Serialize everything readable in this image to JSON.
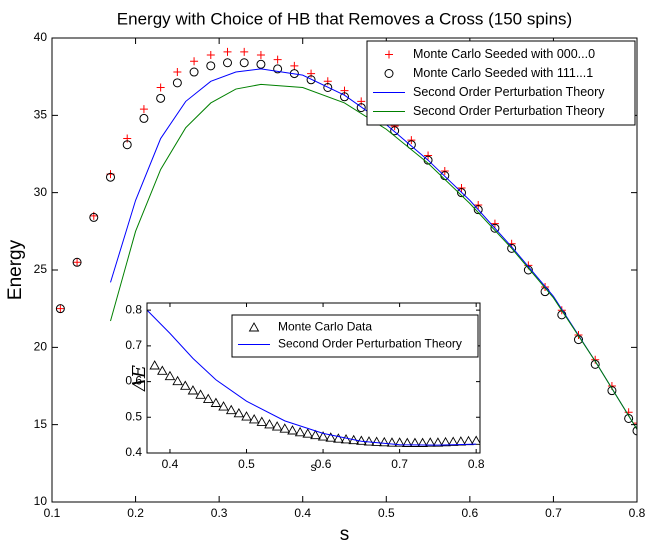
{
  "chart_data": [
    {
      "type": "line",
      "title": "Energy with Choice of HB that Removes a Cross (150 spins)",
      "x_label": "s",
      "y_label": "Energy",
      "xlim": [
        0.1,
        0.8
      ],
      "xticks": [
        0.1,
        0.2,
        0.3,
        0.4,
        0.5,
        0.6,
        0.7,
        0.8
      ],
      "ylim": [
        10,
        40
      ],
      "yticks": [
        10,
        15,
        20,
        25,
        30,
        35,
        40
      ],
      "legend": "upper right",
      "series": [
        {
          "name": "Monte Carlo Seeded with 000...0",
          "color": "#ff0000",
          "marker": "+",
          "x": [
            0.11,
            0.13,
            0.15,
            0.17,
            0.19,
            0.21,
            0.23,
            0.25,
            0.27,
            0.29,
            0.31,
            0.33,
            0.35,
            0.37,
            0.39,
            0.41,
            0.43,
            0.45,
            0.47,
            0.49,
            0.51,
            0.53,
            0.55,
            0.57,
            0.59,
            0.61,
            0.63,
            0.65,
            0.67,
            0.69,
            0.71,
            0.73,
            0.75,
            0.77,
            0.79,
            0.8
          ],
          "values": [
            22.5,
            25.5,
            28.5,
            31.2,
            33.5,
            35.4,
            36.8,
            37.8,
            38.5,
            38.9,
            39.1,
            39.1,
            38.9,
            38.6,
            38.2,
            37.7,
            37.2,
            36.6,
            35.9,
            35.1,
            34.3,
            33.4,
            32.4,
            31.4,
            30.3,
            29.2,
            28.0,
            26.7,
            25.3,
            23.9,
            22.4,
            20.8,
            19.2,
            17.5,
            15.8,
            15.1
          ]
        },
        {
          "name": "Monte Carlo Seeded with 111...1",
          "color": "#000000",
          "marker": "o",
          "x": [
            0.11,
            0.13,
            0.15,
            0.17,
            0.19,
            0.21,
            0.23,
            0.25,
            0.27,
            0.29,
            0.31,
            0.33,
            0.35,
            0.37,
            0.39,
            0.41,
            0.43,
            0.45,
            0.47,
            0.49,
            0.51,
            0.53,
            0.55,
            0.57,
            0.59,
            0.61,
            0.63,
            0.65,
            0.67,
            0.69,
            0.71,
            0.73,
            0.75,
            0.77,
            0.79,
            0.8
          ],
          "values": [
            22.5,
            25.5,
            28.4,
            31.0,
            33.1,
            34.8,
            36.1,
            37.1,
            37.8,
            38.2,
            38.4,
            38.4,
            38.3,
            38.0,
            37.7,
            37.3,
            36.8,
            36.2,
            35.5,
            34.8,
            34.0,
            33.1,
            32.1,
            31.1,
            30.0,
            28.9,
            27.7,
            26.4,
            25.0,
            23.6,
            22.1,
            20.5,
            18.9,
            17.2,
            15.4,
            14.6
          ]
        },
        {
          "name": "Second Order Perturbation Theory",
          "color": "#0000ff",
          "x": [
            0.17,
            0.2,
            0.23,
            0.26,
            0.29,
            0.32,
            0.35,
            0.4,
            0.45,
            0.5,
            0.55,
            0.6,
            0.65,
            0.7,
            0.75,
            0.8
          ],
          "values": [
            24.2,
            29.5,
            33.5,
            35.9,
            37.2,
            37.8,
            38.0,
            37.6,
            36.3,
            34.4,
            32.1,
            29.5,
            26.5,
            23.3,
            19.1,
            14.7
          ]
        },
        {
          "name": "Second Order Perturbation Theory",
          "color": "#008000",
          "x": [
            0.17,
            0.2,
            0.23,
            0.26,
            0.29,
            0.32,
            0.35,
            0.4,
            0.45,
            0.5,
            0.55,
            0.6,
            0.65,
            0.7,
            0.75,
            0.8
          ],
          "values": [
            21.7,
            27.5,
            31.5,
            34.2,
            35.8,
            36.7,
            37.0,
            36.8,
            35.8,
            34.1,
            31.9,
            29.3,
            26.4,
            23.2,
            19.1,
            14.7
          ]
        }
      ]
    },
    {
      "type": "line",
      "x_label": "s",
      "y_label": "ΔE",
      "xlim": [
        0.37,
        0.805
      ],
      "xticks": [
        0.4,
        0.5,
        0.6,
        0.7,
        0.8
      ],
      "ylim": [
        0.4,
        0.82
      ],
      "yticks": [
        0.4,
        0.5,
        0.6,
        0.7,
        0.8
      ],
      "legend": "upper right",
      "series": [
        {
          "name": "Monte Carlo Data",
          "color": "#000000",
          "marker": "^",
          "x": [
            0.38,
            0.39,
            0.4,
            0.41,
            0.42,
            0.43,
            0.44,
            0.45,
            0.46,
            0.47,
            0.48,
            0.49,
            0.5,
            0.51,
            0.52,
            0.53,
            0.54,
            0.55,
            0.56,
            0.57,
            0.58,
            0.59,
            0.6,
            0.61,
            0.62,
            0.63,
            0.64,
            0.65,
            0.66,
            0.67,
            0.68,
            0.69,
            0.7,
            0.71,
            0.72,
            0.73,
            0.74,
            0.75,
            0.76,
            0.77,
            0.78,
            0.79,
            0.8
          ],
          "values": [
            0.645,
            0.63,
            0.615,
            0.601,
            0.588,
            0.575,
            0.563,
            0.551,
            0.54,
            0.53,
            0.52,
            0.511,
            0.502,
            0.494,
            0.487,
            0.48,
            0.474,
            0.468,
            0.463,
            0.458,
            0.454,
            0.45,
            0.446,
            0.443,
            0.44,
            0.438,
            0.436,
            0.434,
            0.432,
            0.431,
            0.43,
            0.429,
            0.429,
            0.428,
            0.428,
            0.428,
            0.429,
            0.429,
            0.43,
            0.431,
            0.432,
            0.433,
            0.434
          ]
        },
        {
          "name": "Second Order Perturbation Theory",
          "color": "#0000ff",
          "x": [
            0.37,
            0.4,
            0.43,
            0.46,
            0.5,
            0.55,
            0.6,
            0.65,
            0.7,
            0.75,
            0.8
          ],
          "values": [
            0.8,
            0.735,
            0.665,
            0.605,
            0.545,
            0.49,
            0.455,
            0.433,
            0.423,
            0.422,
            0.425
          ]
        }
      ]
    }
  ]
}
